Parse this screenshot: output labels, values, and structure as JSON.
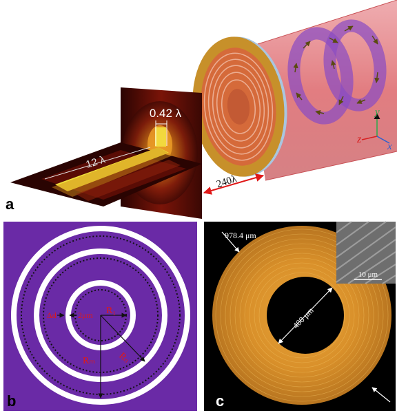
{
  "panel_a": {
    "label": "a",
    "field_width": "0.42 λ",
    "focal_length": "12 λ",
    "distance": "240λ",
    "axes": {
      "x": "x",
      "y": "y",
      "z": "z"
    }
  },
  "panel_b": {
    "label": "b",
    "dimension_a": "Δd",
    "dimension_b": "2μm",
    "radius_1": "R₁",
    "radius_n": "Rₙ",
    "radius_m": "Rₘ"
  },
  "panel_c": {
    "label": "c",
    "outer_diameter": "978.4 μm",
    "inner_diameter": "400 μm",
    "inset_scale": "10 μm"
  },
  "colors": {
    "purple_bg": "#6a2aa6",
    "gold": "#c7902a",
    "orange_ring": "#e39a2a",
    "beam_red": "#d9555a",
    "field_dark": "#4a0b05",
    "field_yellow": "#efe03a",
    "annot_red": "#e01818"
  }
}
